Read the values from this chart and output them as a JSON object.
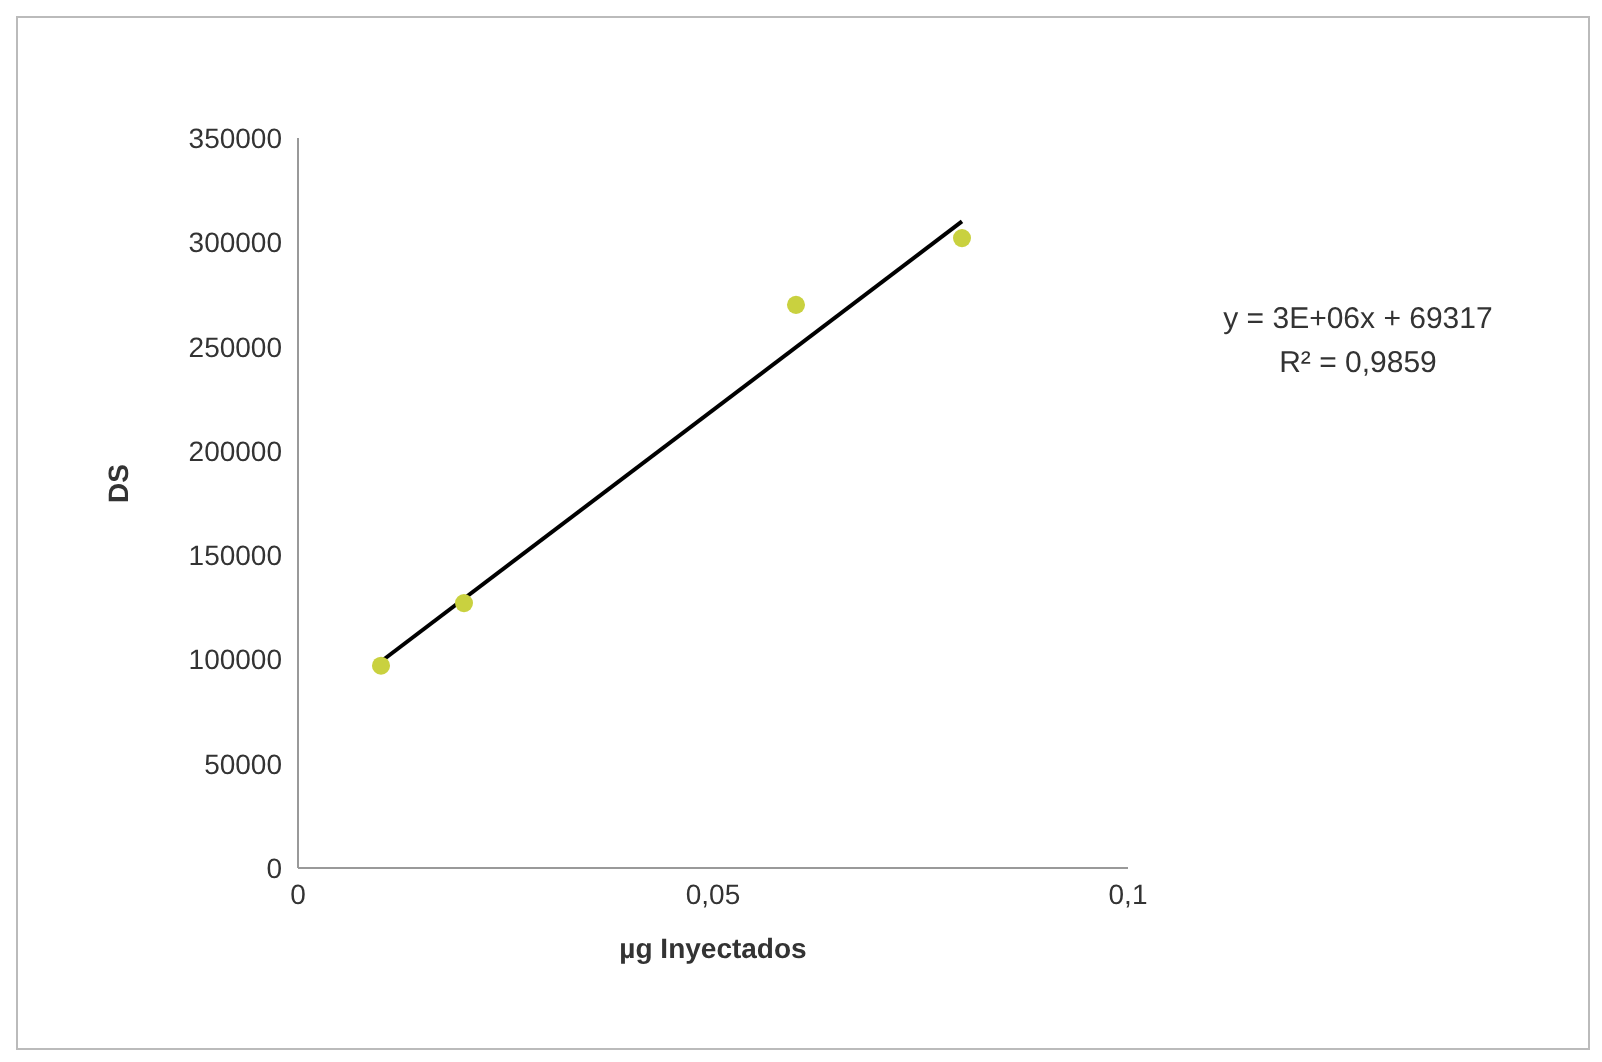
{
  "chart_data": {
    "type": "scatter",
    "xlabel": "µg Inyectados",
    "ylabel": "DS",
    "series": [
      {
        "color": "#c9d13f",
        "marker": "circle",
        "x": [
          0.01,
          0.02,
          0.06,
          0.08
        ],
        "values": [
          97000,
          127000,
          270000,
          302000
        ]
      },
      {
        "type": "line",
        "color": "#000000",
        "x": [
          0.01,
          0.08
        ],
        "values": [
          99000,
          310000
        ],
        "marker": "none"
      }
    ],
    "xlim": [
      0,
      0.1
    ],
    "xticks": [
      0,
      {
        "value": 0.05,
        "label": "0,05"
      },
      {
        "value": 0.1,
        "label": "0,1"
      }
    ],
    "ylim": [
      0,
      350000
    ],
    "yticks": [
      0,
      50000,
      100000,
      150000,
      200000,
      250000,
      300000,
      350000
    ],
    "annotations": [
      "y = 3E+06x + 69317",
      "R² = 0,9859"
    ]
  }
}
